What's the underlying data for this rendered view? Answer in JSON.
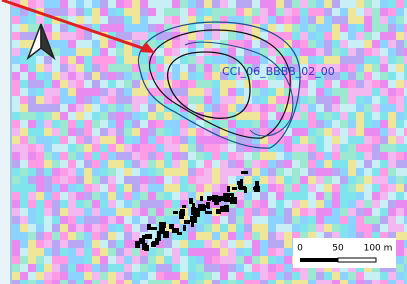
{
  "map": {
    "label": "CCI_06_BBBB_02_00",
    "scale_bar": {
      "labels": [
        "0",
        "50",
        "100 m"
      ]
    }
  }
}
